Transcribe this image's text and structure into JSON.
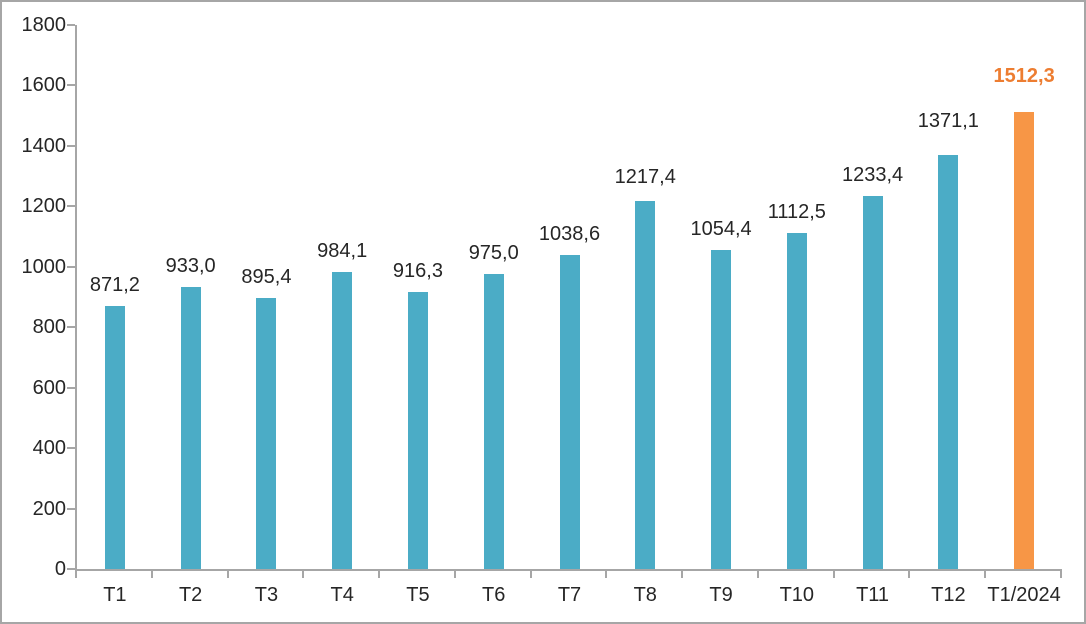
{
  "window": {
    "background_color": "#FFFFFF",
    "border_color": "#A6A6A6"
  },
  "chart_data": {
    "type": "bar",
    "title": "",
    "xlabel": "",
    "ylabel": "",
    "categories": [
      "T1",
      "T2",
      "T3",
      "T4",
      "T5",
      "T6",
      "T7",
      "T8",
      "T9",
      "T10",
      "T11",
      "T12",
      "T1/2024"
    ],
    "values": [
      871.2,
      933.0,
      895.4,
      984.1,
      916.3,
      975.0,
      1038.6,
      1217.4,
      1054.4,
      1112.5,
      1233.4,
      1371.1,
      1512.3
    ],
    "value_labels": [
      "871,2",
      "933,0",
      "895,4",
      "984,1",
      "916,3",
      "975,0",
      "1038,6",
      "1217,4",
      "1054,4",
      "1112,5",
      "1233,4",
      "1371,1",
      "1512,3"
    ],
    "ylim": [
      0,
      1800
    ],
    "ytick_step": 200,
    "ytick_values": [
      0,
      200,
      400,
      600,
      800,
      1000,
      1200,
      1400,
      1600,
      1800
    ],
    "ytick_labels": [
      "0",
      "200",
      "400",
      "600",
      "800",
      "1000",
      "1200",
      "1400",
      "1600",
      "1800"
    ],
    "grid": false,
    "legend_position": "none",
    "bar_color": "#4BACC6",
    "data_label_color": "#262626",
    "axis_color": "#A6A6A6",
    "highlight": {
      "index": 12,
      "category": "T1/2024",
      "value": 1512.3,
      "value_label": "1512,3",
      "bar_color": "#F79646",
      "label_color": "#ED7D31"
    }
  }
}
